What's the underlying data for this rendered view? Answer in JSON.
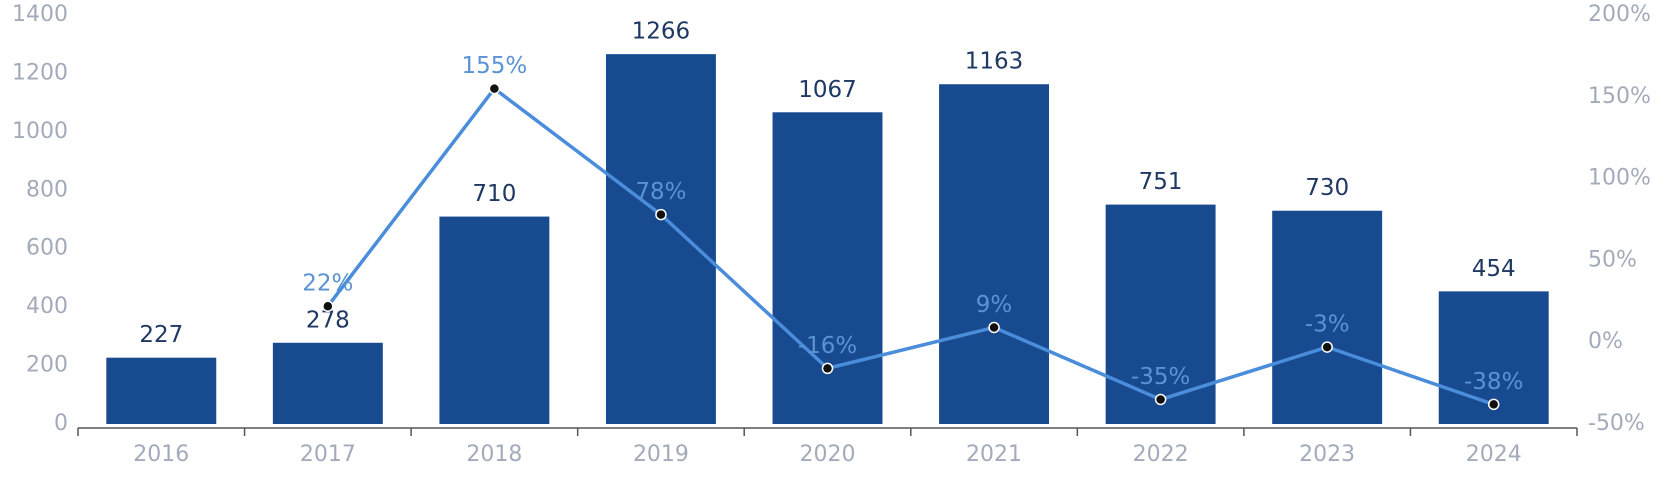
{
  "chart_data": {
    "type": "bar_line",
    "categories": [
      "2016",
      "2017",
      "2018",
      "2019",
      "2020",
      "2021",
      "2022",
      "2023",
      "2024"
    ],
    "series": [
      {
        "type": "bar",
        "color": "#174a8f",
        "values": [
          227,
          278,
          710,
          1266,
          1067,
          1163,
          751,
          730,
          454
        ]
      },
      {
        "type": "line",
        "axis": "y2",
        "color": "#4a8ddb",
        "values": [
          null,
          22,
          155,
          78,
          -16,
          9,
          -35,
          -3,
          -38
        ],
        "value_labels": [
          null,
          "22%",
          "155%",
          "78%",
          "-16%",
          "9%",
          "-35%",
          "-3%",
          "-38%"
        ]
      }
    ],
    "ylim": [
      0,
      1400
    ],
    "yticks": [
      0,
      200,
      400,
      600,
      800,
      1000,
      1200,
      1400
    ],
    "y2lim": [
      -50,
      200
    ],
    "y2ticks": [
      {
        "value": -50,
        "label": "-50%"
      },
      {
        "value": 0,
        "label": "0%"
      },
      {
        "value": 50,
        "label": "50%"
      },
      {
        "value": 100,
        "label": "100%"
      },
      {
        "value": 150,
        "label": "150%"
      },
      {
        "value": 200,
        "label": "200%"
      }
    ]
  }
}
